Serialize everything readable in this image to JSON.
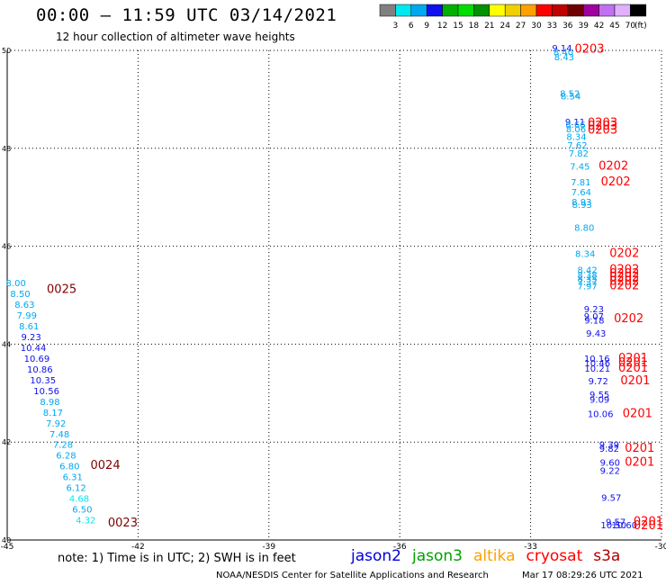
{
  "header": {
    "title": "00:00 – 11:59 UTC 03/14/2021",
    "subtitle": "12 hour collection of altimeter wave heights"
  },
  "color_scale": {
    "labels": [
      "3",
      "6",
      "9",
      "12",
      "15",
      "18",
      "21",
      "24",
      "27",
      "30",
      "33",
      "36",
      "39",
      "42",
      "45",
      "70"
    ],
    "unit": "(ft)",
    "colors": [
      "#808080",
      "#00e8f0",
      "#00a8f0",
      "#1010ee",
      "#00b000",
      "#00dd00",
      "#009000",
      "#ffff00",
      "#f0d000",
      "#ffa000",
      "#ff0000",
      "#c00000",
      "#700000",
      "#a000a0",
      "#c070f0",
      "#e0b0ff",
      "#000000"
    ]
  },
  "footer": {
    "note": "note:  1) Time is in UTC;  2) SWH is in feet",
    "satellites": [
      {
        "name": "jason2",
        "color": "#0000dd"
      },
      {
        "name": "jason3",
        "color": "#00a000"
      },
      {
        "name": "altika",
        "color": "#ffa000"
      },
      {
        "name": "cryosat",
        "color": "#ff0000"
      },
      {
        "name": "s3a",
        "color": "#b00000"
      }
    ],
    "credit": "NOAA/NESDIS Center for Satellite Applications and Research",
    "generated": "Mar 17 08:29:26 UTC 2021"
  },
  "chart_data": {
    "type": "scatter",
    "xlim": [
      -45,
      -30
    ],
    "ylim": [
      40,
      50
    ],
    "x_ticks": [
      -45,
      -42,
      -39,
      -36,
      -33,
      -30
    ],
    "x_tick_labels": [
      "-45",
      "-42",
      "-39",
      "-36",
      "-33",
      "-30"
    ],
    "y_ticks": [
      40,
      42,
      44,
      46,
      48,
      50
    ],
    "y_tick_labels": [
      "40",
      "42",
      "44",
      "46",
      "48",
      "50"
    ],
    "grid": true,
    "points": [
      {
        "x": -44.8,
        "y": 45.18,
        "v": "8.00",
        "c": "#00a8f0"
      },
      {
        "x": -44.7,
        "y": 44.96,
        "v": "8.50",
        "c": "#00a8f0"
      },
      {
        "x": -44.6,
        "y": 44.74,
        "v": "8.63",
        "c": "#00a8f0"
      },
      {
        "x": -44.55,
        "y": 44.52,
        "v": "7.99",
        "c": "#00a8f0"
      },
      {
        "x": -44.5,
        "y": 44.3,
        "v": "8.61",
        "c": "#00a8f0"
      },
      {
        "x": -44.45,
        "y": 44.08,
        "v": "9.23",
        "c": "#1010ee"
      },
      {
        "x": -44.4,
        "y": 43.86,
        "v": "10.44",
        "c": "#1010ee"
      },
      {
        "x": -44.32,
        "y": 43.64,
        "v": "10.69",
        "c": "#1010ee"
      },
      {
        "x": -44.25,
        "y": 43.42,
        "v": "10.86",
        "c": "#1010ee"
      },
      {
        "x": -44.18,
        "y": 43.2,
        "v": "10.35",
        "c": "#1010ee"
      },
      {
        "x": -44.1,
        "y": 42.98,
        "v": "10.56",
        "c": "#1010ee"
      },
      {
        "x": -44.02,
        "y": 42.76,
        "v": "8.98",
        "c": "#00a8f0"
      },
      {
        "x": -43.95,
        "y": 42.54,
        "v": "8.17",
        "c": "#00a8f0"
      },
      {
        "x": -43.88,
        "y": 42.32,
        "v": "7.92",
        "c": "#00a8f0"
      },
      {
        "x": -43.8,
        "y": 42.1,
        "v": "7.48",
        "c": "#00a8f0"
      },
      {
        "x": -43.72,
        "y": 41.88,
        "v": "7.28",
        "c": "#00a8f0"
      },
      {
        "x": -43.65,
        "y": 41.66,
        "v": "6.28",
        "c": "#00a8f0"
      },
      {
        "x": -43.57,
        "y": 41.44,
        "v": "6.80",
        "c": "#00a8f0"
      },
      {
        "x": -43.5,
        "y": 41.22,
        "v": "6.31",
        "c": "#00a8f0"
      },
      {
        "x": -43.42,
        "y": 41.0,
        "v": "6.12",
        "c": "#00a8f0"
      },
      {
        "x": -43.35,
        "y": 40.78,
        "v": "4.68",
        "c": "#00e8f0"
      },
      {
        "x": -43.28,
        "y": 40.56,
        "v": "6.50",
        "c": "#00a8f0"
      },
      {
        "x": -43.2,
        "y": 40.34,
        "v": "4.32",
        "c": "#00e8f0"
      },
      {
        "x": -32.28,
        "y": 49.98,
        "v": "9.14",
        "c": "#1010ee"
      },
      {
        "x": -32.25,
        "y": 49.9,
        "v": "8.40",
        "c": "#00a8f0"
      },
      {
        "x": -32.23,
        "y": 49.8,
        "v": "8.43",
        "c": "#00a8f0"
      },
      {
        "x": -32.1,
        "y": 49.05,
        "v": "8.52",
        "c": "#00a8f0"
      },
      {
        "x": -32.08,
        "y": 49.0,
        "v": "8.54",
        "c": "#00a8f0"
      },
      {
        "x": -31.98,
        "y": 48.47,
        "v": "9.11",
        "c": "#1010ee"
      },
      {
        "x": -31.97,
        "y": 48.42,
        "v": "8.66",
        "c": "#00a8f0"
      },
      {
        "x": -31.96,
        "y": 48.33,
        "v": "8.06",
        "c": "#00a8f0"
      },
      {
        "x": -31.95,
        "y": 48.17,
        "v": "8.34",
        "c": "#00a8f0"
      },
      {
        "x": -31.93,
        "y": 48.0,
        "v": "7.62",
        "c": "#00a8f0"
      },
      {
        "x": -31.9,
        "y": 47.83,
        "v": "7.82",
        "c": "#00a8f0"
      },
      {
        "x": -31.87,
        "y": 47.56,
        "v": "7.45",
        "c": "#00a8f0"
      },
      {
        "x": -31.85,
        "y": 47.24,
        "v": "7.81",
        "c": "#00a8f0"
      },
      {
        "x": -31.84,
        "y": 47.04,
        "v": "7.64",
        "c": "#00a8f0"
      },
      {
        "x": -31.83,
        "y": 46.84,
        "v": "8.93",
        "c": "#00a8f0"
      },
      {
        "x": -31.82,
        "y": 46.78,
        "v": "8.93",
        "c": "#00a8f0"
      },
      {
        "x": -31.77,
        "y": 46.31,
        "v": "8.80",
        "c": "#00a8f0"
      },
      {
        "x": -31.75,
        "y": 45.78,
        "v": "8.34",
        "c": "#00a8f0"
      },
      {
        "x": -31.7,
        "y": 45.45,
        "v": "8.42",
        "c": "#00a8f0"
      },
      {
        "x": -31.7,
        "y": 45.35,
        "v": "8.38",
        "c": "#00a8f0"
      },
      {
        "x": -31.7,
        "y": 45.27,
        "v": "8.35",
        "c": "#00a8f0"
      },
      {
        "x": -31.7,
        "y": 45.2,
        "v": "7.37",
        "c": "#00a8f0"
      },
      {
        "x": -31.7,
        "y": 45.12,
        "v": "7.97",
        "c": "#00a8f0"
      },
      {
        "x": -31.55,
        "y": 44.65,
        "v": "9.23",
        "c": "#1010ee"
      },
      {
        "x": -31.55,
        "y": 44.5,
        "v": "9.07",
        "c": "#1010ee"
      },
      {
        "x": -31.54,
        "y": 44.42,
        "v": "9.18",
        "c": "#1010ee"
      },
      {
        "x": -31.5,
        "y": 44.15,
        "v": "9.43",
        "c": "#1010ee"
      },
      {
        "x": -31.48,
        "y": 43.64,
        "v": "10.16",
        "c": "#1010ee"
      },
      {
        "x": -31.47,
        "y": 43.55,
        "v": "10.46",
        "c": "#1010ee"
      },
      {
        "x": -31.47,
        "y": 43.44,
        "v": "10.21",
        "c": "#1010ee"
      },
      {
        "x": -31.45,
        "y": 43.18,
        "v": "9.72",
        "c": "#1010ee"
      },
      {
        "x": -31.42,
        "y": 42.9,
        "v": "9.55",
        "c": "#1010ee"
      },
      {
        "x": -31.42,
        "y": 42.8,
        "v": "9.09",
        "c": "#1010ee"
      },
      {
        "x": -31.4,
        "y": 42.51,
        "v": "10.06",
        "c": "#1010ee"
      },
      {
        "x": -31.2,
        "y": 41.88,
        "v": "9.39",
        "c": "#1010ee"
      },
      {
        "x": -31.2,
        "y": 41.8,
        "v": "9.82",
        "c": "#1010ee"
      },
      {
        "x": -31.18,
        "y": 41.52,
        "v": "9.60",
        "c": "#1010ee"
      },
      {
        "x": -31.18,
        "y": 41.35,
        "v": "9.22",
        "c": "#1010ee"
      },
      {
        "x": -31.15,
        "y": 40.8,
        "v": "9.57",
        "c": "#1010ee"
      },
      {
        "x": -31.05,
        "y": 40.3,
        "v": "9.57",
        "c": "#1010ee"
      },
      {
        "x": -31.1,
        "y": 40.24,
        "v": "10.50",
        "c": "#1010ee"
      },
      {
        "x": -30.85,
        "y": 40.24,
        "v": "10.60",
        "c": "#1010ee"
      }
    ],
    "time_labels": [
      {
        "x": -43.75,
        "y": 45.05,
        "t": "0025",
        "c": "#800000"
      },
      {
        "x": -42.75,
        "y": 41.45,
        "t": "0024",
        "c": "#800000"
      },
      {
        "x": -42.35,
        "y": 40.28,
        "t": "0023",
        "c": "#800000"
      },
      {
        "x": -31.65,
        "y": 49.95,
        "t": "0203",
        "c": "#ff0000"
      },
      {
        "x": -31.35,
        "y": 48.45,
        "t": "0203",
        "c": "#ff0000"
      },
      {
        "x": -31.35,
        "y": 48.38,
        "t": "0203",
        "c": "#ff0000"
      },
      {
        "x": -31.35,
        "y": 48.3,
        "t": "0203",
        "c": "#ff0000"
      },
      {
        "x": -31.1,
        "y": 47.56,
        "t": "0202",
        "c": "#ff0000"
      },
      {
        "x": -31.05,
        "y": 47.24,
        "t": "0202",
        "c": "#ff0000"
      },
      {
        "x": -30.85,
        "y": 45.78,
        "t": "0202",
        "c": "#ff0000"
      },
      {
        "x": -30.85,
        "y": 45.45,
        "t": "0202",
        "c": "#ff0000"
      },
      {
        "x": -30.85,
        "y": 45.37,
        "t": "0202",
        "c": "#ff0000"
      },
      {
        "x": -30.85,
        "y": 45.29,
        "t": "0202",
        "c": "#ff0000"
      },
      {
        "x": -30.85,
        "y": 45.21,
        "t": "0202",
        "c": "#ff0000"
      },
      {
        "x": -30.85,
        "y": 45.12,
        "t": "0202",
        "c": "#ff0000"
      },
      {
        "x": -30.75,
        "y": 44.45,
        "t": "0202",
        "c": "#ff0000"
      },
      {
        "x": -30.65,
        "y": 43.64,
        "t": "0201",
        "c": "#ff0000"
      },
      {
        "x": -30.65,
        "y": 43.55,
        "t": "0201",
        "c": "#ff0000"
      },
      {
        "x": -30.65,
        "y": 43.44,
        "t": "0201",
        "c": "#ff0000"
      },
      {
        "x": -30.6,
        "y": 43.18,
        "t": "0201",
        "c": "#ff0000"
      },
      {
        "x": -30.55,
        "y": 42.51,
        "t": "0201",
        "c": "#ff0000"
      },
      {
        "x": -30.5,
        "y": 41.8,
        "t": "0201",
        "c": "#ff0000"
      },
      {
        "x": -30.5,
        "y": 41.52,
        "t": "0201",
        "c": "#ff0000"
      },
      {
        "x": -30.3,
        "y": 40.3,
        "t": "0201",
        "c": "#ff0000"
      },
      {
        "x": -30.3,
        "y": 40.22,
        "t": "0201",
        "c": "#ff0000"
      }
    ]
  }
}
